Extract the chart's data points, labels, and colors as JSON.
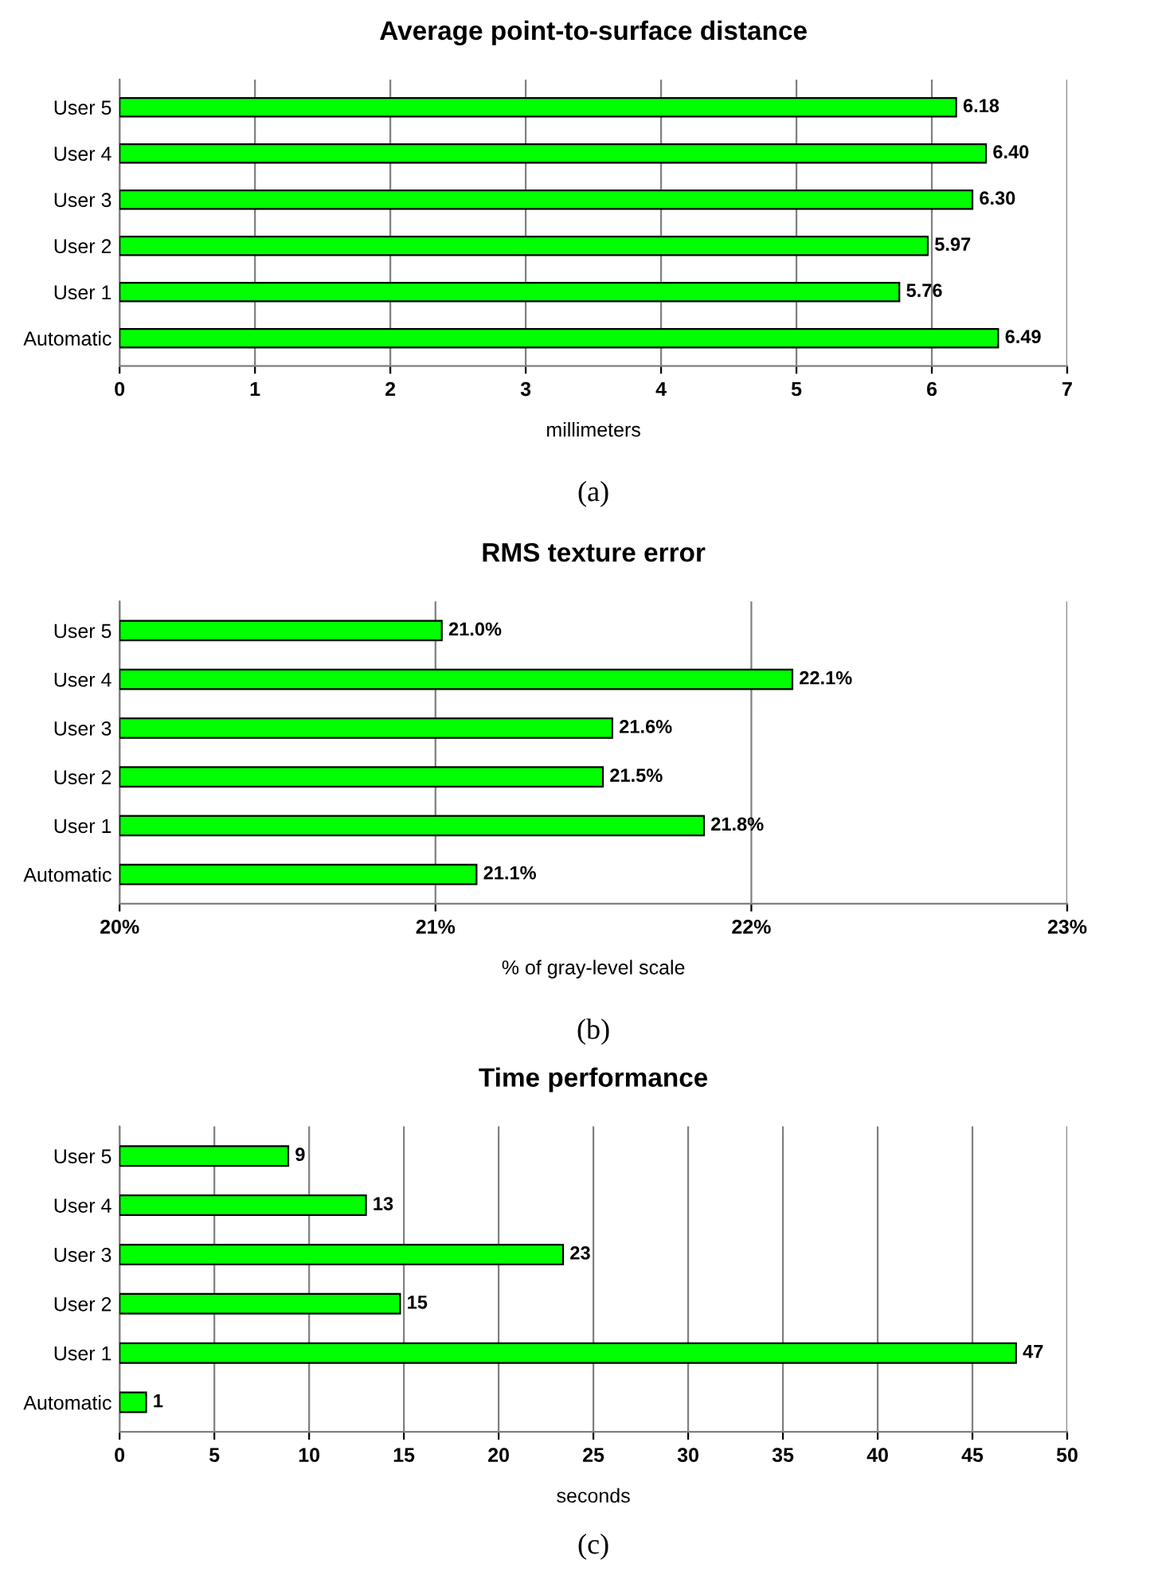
{
  "chart_data": [
    {
      "type": "bar",
      "orientation": "horizontal",
      "title": "Average point-to-surface distance",
      "xlabel": "millimeters",
      "categories": [
        "User 5",
        "User 4",
        "User 3",
        "User 2",
        "User 1",
        "Automatic"
      ],
      "values": [
        6.18,
        6.4,
        6.3,
        5.97,
        5.76,
        6.49
      ],
      "color": "#00ff00",
      "value_labels": [
        "6.18",
        "6.40",
        "6.30",
        "5.97",
        "5.76",
        "6.49"
      ],
      "xlim": [
        0,
        7
      ],
      "xticks": [
        0,
        1,
        2,
        3,
        4,
        5,
        6,
        7
      ],
      "grid": "x",
      "annotations": [
        "(a)"
      ]
    },
    {
      "type": "bar",
      "orientation": "horizontal",
      "title": "RMS texture error",
      "xlabel": "% of gray-level scale",
      "categories": [
        "User 5",
        "User 4",
        "User 3",
        "User 2",
        "User 1",
        "Automatic"
      ],
      "values": [
        21.02,
        22.13,
        21.56,
        21.53,
        21.85,
        21.13
      ],
      "color": "#00ff00",
      "value_labels": [
        "21.0%",
        "22.1%",
        "21.6%",
        "21.5%",
        "21.8%",
        "21.1%"
      ],
      "xlim": [
        20,
        23
      ],
      "xticks": [
        {
          "value": 20,
          "label": "20%"
        },
        {
          "value": 21,
          "label": "21%"
        },
        {
          "value": 22,
          "label": "22%"
        },
        {
          "value": 23,
          "label": "23%"
        }
      ],
      "grid": "x",
      "annotations": [
        "(b)"
      ]
    },
    {
      "type": "bar",
      "orientation": "horizontal",
      "title": "Time performance",
      "xlabel": "seconds",
      "categories": [
        "User 5",
        "User 4",
        "User 3",
        "User 2",
        "User 1",
        "Automatic"
      ],
      "values": [
        8.9,
        13.0,
        23.4,
        14.8,
        47.3,
        1.4
      ],
      "color": "#00ff00",
      "value_labels": [
        "9",
        "13",
        "23",
        "15",
        "47",
        "1"
      ],
      "xlim": [
        0,
        50
      ],
      "xticks": [
        0,
        5,
        10,
        15,
        20,
        25,
        30,
        35,
        40,
        45,
        50
      ],
      "grid": "x",
      "annotations": [
        "(c)"
      ]
    }
  ]
}
